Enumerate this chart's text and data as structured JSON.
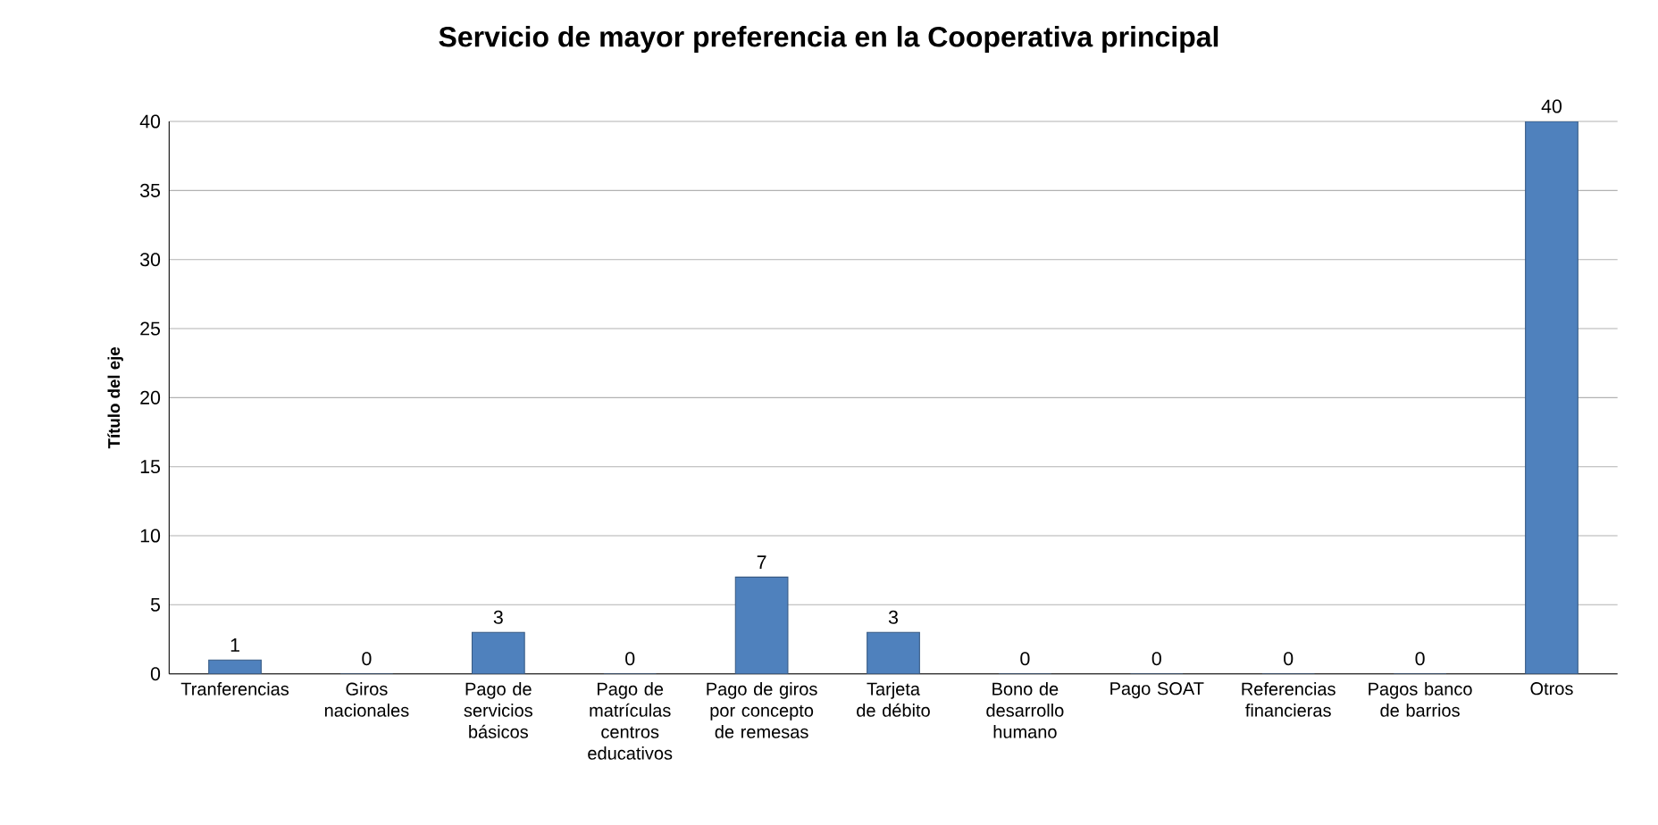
{
  "chart_data": {
    "type": "bar",
    "title": "Servicio de mayor preferencia en la Cooperativa principal",
    "ylabel": "Título del eje",
    "categories": [
      "Tranferencias",
      "Giros nacionales",
      "Pago de servicios básicos",
      "Pago de matrículas centros educativos",
      "Pago de giros por concepto de remesas",
      "Tarjeta de débito",
      "Bono de desarrollo humano",
      "Pago SOAT",
      "Referencias financieras",
      "Pagos banco de barrios",
      "Otros"
    ],
    "values": [
      1,
      0,
      3,
      0,
      7,
      3,
      0,
      0,
      0,
      0,
      40
    ],
    "color": "#4f81bd",
    "ylim": [
      0,
      40
    ],
    "yticks": [
      0,
      5,
      10,
      15,
      20,
      25,
      30,
      35,
      40
    ],
    "grid": "y",
    "data_labels": true
  }
}
